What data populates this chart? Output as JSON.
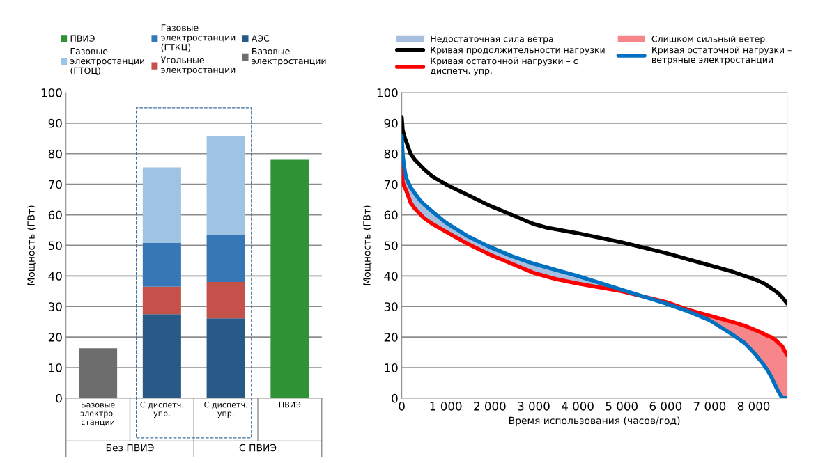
{
  "chart_data": [
    {
      "type": "bar",
      "stacked": true,
      "ylabel": "Мощность (ГВт)",
      "categories": [
        "Базовые\nэлектро-\nстанции",
        "С диспетч.\nупр.",
        "С диспетч.\nупр.",
        "ПВИЭ"
      ],
      "ylim": [
        0,
        100
      ],
      "yticks": [
        0,
        10,
        20,
        30,
        40,
        50,
        60,
        70,
        80,
        90,
        100
      ],
      "grid": "y",
      "legend": "top",
      "series": [
        {
          "name": "Базовые\nэлектростанции",
          "color": "#6d6d6d",
          "values": [
            16.3,
            null,
            null,
            null
          ]
        },
        {
          "name": "АЭС",
          "color": "#285a87",
          "values": [
            null,
            27.5,
            26.1,
            null
          ]
        },
        {
          "name": "Угольные\nэлектростанции",
          "color": "#c4514a",
          "values": [
            null,
            9.0,
            11.9,
            null
          ]
        },
        {
          "name": "Газовые\nэлектростанции\n(ГТКЦ)",
          "color": "#3578b5",
          "values": [
            null,
            14.3,
            15.3,
            null
          ]
        },
        {
          "name": "Газовые\nэлектростанции\n(ГТОЦ)",
          "color": "#9fc3e3",
          "values": [
            null,
            24.7,
            32.5,
            null
          ]
        },
        {
          "name": "ПВИЭ",
          "color": "#2f9336",
          "values": [
            null,
            null,
            null,
            78.0
          ]
        }
      ],
      "annotations": [
        "Без ПВИЭ",
        "С ПВИЭ"
      ]
    },
    {
      "type": "line",
      "xlabel": "Время использования (часов/год)",
      "ylabel": "Мощность (ГВт)",
      "xlim": [
        0,
        8760
      ],
      "ylim": [
        0,
        100
      ],
      "xticks": [
        0,
        {
          "value": 1000,
          "label": "1 000"
        },
        {
          "value": 2000,
          "label": "2 000"
        },
        {
          "value": 3000,
          "label": "3 000"
        },
        {
          "value": 4000,
          "label": "4 000"
        },
        {
          "value": 5000,
          "label": "5 000"
        },
        {
          "value": 6000,
          "label": "6 000"
        },
        {
          "value": 7000,
          "label": "7 000"
        },
        {
          "value": 8000,
          "label": "8 000"
        }
      ],
      "yticks": [
        0,
        10,
        20,
        30,
        40,
        50,
        60,
        70,
        80,
        90,
        100
      ],
      "grid": "y",
      "legend": "top",
      "line_style": "solid",
      "marker": "none",
      "x": [
        0,
        20,
        50,
        100,
        200,
        300,
        400,
        500,
        700,
        1000,
        1500,
        2000,
        2500,
        3000,
        3300,
        3500,
        4000,
        5000,
        6000,
        6500,
        7000,
        7500,
        7800,
        8000,
        8200,
        8300,
        8400,
        8500,
        8550,
        8650,
        8760
      ],
      "series": [
        {
          "type": "line",
          "name": "Кривая продолжительности нагрузки",
          "color": "#000000",
          "values": [
            92,
            88,
            86,
            84,
            80,
            78,
            76.5,
            75,
            72.5,
            70,
            66.5,
            63,
            60,
            57,
            55.8,
            55.3,
            54,
            51,
            47.5,
            45.5,
            43.5,
            41.5,
            40,
            39,
            37.8,
            37,
            36,
            35,
            34.5,
            33,
            31
          ]
        },
        {
          "type": "line",
          "name": "Кривая остаточной нагрузки – с\nдиспетч. упр.",
          "color": "#ff0000",
          "values": [
            77,
            71,
            69.5,
            68,
            64,
            62,
            60.5,
            59,
            57,
            54.5,
            50.5,
            47,
            44,
            41,
            39.8,
            39,
            37.5,
            35,
            31.5,
            29,
            27,
            25,
            23.7,
            22.5,
            21.3,
            20.5,
            20,
            19,
            18.3,
            17,
            14
          ]
        },
        {
          "type": "area",
          "name": "Недостаточная сила ветра",
          "color": "#a6bfe0",
          "values": [
            86,
            80,
            76,
            72,
            69,
            67,
            65,
            63.5,
            61,
            57.5,
            53,
            49.5,
            46.5,
            44,
            42.8,
            42,
            40,
            35.5,
            31.5,
            null,
            null,
            null,
            null,
            null,
            null,
            null,
            null,
            null,
            null,
            null,
            null
          ]
        },
        {
          "type": "line",
          "name": "Кривая остаточной нагрузки –\nветряные электростанции",
          "color": "#0070c0",
          "values": [
            86,
            80,
            76,
            72,
            69,
            67,
            65,
            63.5,
            61,
            57.5,
            53,
            49.5,
            46.5,
            44,
            42.8,
            42,
            40,
            35.5,
            31,
            28.5,
            25.5,
            21,
            18,
            15,
            11.5,
            9.5,
            7,
            4,
            2.5,
            0,
            0
          ]
        },
        {
          "type": "area",
          "name": "Слишком сильный ветер",
          "color": "#f7868a",
          "values": [
            null,
            null,
            null,
            null,
            null,
            null,
            null,
            null,
            null,
            null,
            null,
            null,
            null,
            null,
            null,
            null,
            null,
            null,
            31.5,
            29,
            27,
            25,
            23.7,
            22.5,
            21.3,
            20.5,
            20,
            19,
            18.3,
            17,
            14
          ]
        }
      ]
    }
  ]
}
